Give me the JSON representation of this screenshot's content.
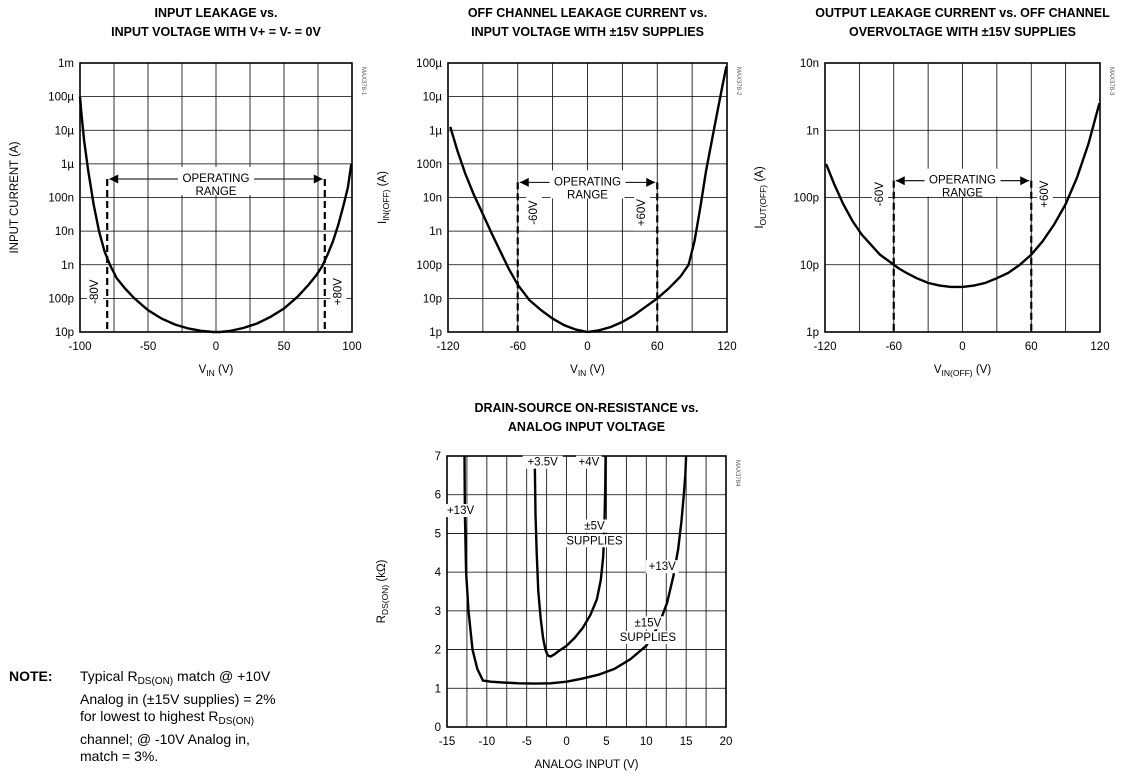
{
  "chart_data": [
    {
      "id": "g1",
      "type": "line",
      "title": [
        "INPUT LEAKAGE vs.",
        "INPUT VOLTAGE WITH V+ = V- = 0V"
      ],
      "xlabel": {
        "main": "V",
        "sub": "IN",
        "rest": " (V)"
      },
      "ylabel": {
        "main": "INPUT CURRENT (A)",
        "sub": "",
        "rest": ""
      },
      "code": "MAX378-1",
      "xlim": [
        -100,
        100
      ],
      "ylim": [
        -11,
        -3
      ],
      "y_scale": "log",
      "x_ticks": [
        {
          "v": -100,
          "t": "-100"
        },
        {
          "v": -50,
          "t": "-50"
        },
        {
          "v": 0,
          "t": "0"
        },
        {
          "v": 50,
          "t": "50"
        },
        {
          "v": 100,
          "t": "100"
        }
      ],
      "y_ticks": [
        {
          "v": -11,
          "t": "10p"
        },
        {
          "v": -10,
          "t": "100p"
        },
        {
          "v": -9,
          "t": "1n"
        },
        {
          "v": -8,
          "t": "10n"
        },
        {
          "v": -7,
          "t": "100n"
        },
        {
          "v": -6,
          "t": "1µ"
        },
        {
          "v": -5,
          "t": "10µ"
        },
        {
          "v": -4,
          "t": "100µ"
        },
        {
          "v": -3,
          "t": "1m"
        }
      ],
      "grid_x": [
        -75,
        -50,
        -25,
        0,
        25,
        50,
        75
      ],
      "series": [
        {
          "x": [
            -100,
            -99,
            -97,
            -94,
            -90,
            -86,
            -82,
            -78,
            -73,
            -67,
            -60,
            -50,
            -40,
            -30,
            -20,
            -10,
            -2,
            0,
            3,
            10,
            20,
            30,
            40,
            50,
            60,
            68,
            74,
            78,
            82,
            86,
            90,
            94,
            97,
            99.5
          ],
          "y": [
            -4.0,
            -4.5,
            -5.3,
            -6.2,
            -7.2,
            -8.0,
            -8.6,
            -9.0,
            -9.4,
            -9.7,
            -10.0,
            -10.35,
            -10.6,
            -10.78,
            -10.9,
            -10.97,
            -11.0,
            -11.0,
            -11.0,
            -10.97,
            -10.88,
            -10.75,
            -10.55,
            -10.3,
            -9.95,
            -9.6,
            -9.3,
            -9.05,
            -8.7,
            -8.3,
            -7.8,
            -7.2,
            -6.7,
            -6.0
          ]
        }
      ],
      "dashed_x": [
        -80,
        80
      ],
      "dashed_from_y": -6.45,
      "range_label": [
        "OPERATING",
        "RANGE"
      ],
      "range_label_x": 0,
      "range_arrow_y": -6.45,
      "v_labels": [
        {
          "t": "-80V",
          "x": -89,
          "y": -9.8
        },
        {
          "t": "+80V",
          "x": 90,
          "y": -9.8
        }
      ]
    },
    {
      "id": "g2",
      "type": "line",
      "title": [
        "OFF CHANNEL LEAKAGE CURRENT vs.",
        "INPUT VOLTAGE WITH ±15V SUPPLIES"
      ],
      "xlabel": {
        "main": "V",
        "sub": "IN",
        "rest": " (V)"
      },
      "ylabel": {
        "main": "I",
        "sub": "IN(OFF)",
        "rest": " (A)"
      },
      "code": "MAX378-2",
      "xlim": [
        -120,
        120
      ],
      "ylim": [
        -12,
        -4
      ],
      "y_scale": "log",
      "x_ticks": [
        {
          "v": -120,
          "t": "-120"
        },
        {
          "v": -60,
          "t": "-60"
        },
        {
          "v": 0,
          "t": "0"
        },
        {
          "v": 60,
          "t": "60"
        },
        {
          "v": 120,
          "t": "120"
        }
      ],
      "y_ticks": [
        {
          "v": -12,
          "t": "1p"
        },
        {
          "v": -11,
          "t": "10p"
        },
        {
          "v": -10,
          "t": "100p"
        },
        {
          "v": -9,
          "t": "1n"
        },
        {
          "v": -8,
          "t": "10n"
        },
        {
          "v": -7,
          "t": "100n"
        },
        {
          "v": -6,
          "t": "1µ"
        },
        {
          "v": -5,
          "t": "10µ"
        },
        {
          "v": -4,
          "t": "100µ"
        }
      ],
      "grid_x": [
        -90,
        -60,
        -30,
        0,
        30,
        60,
        90
      ],
      "series": [
        {
          "x": [
            -118,
            -112,
            -105,
            -98,
            -90,
            -82,
            -75,
            -68,
            -60,
            -50,
            -40,
            -30,
            -20,
            -10,
            0,
            10,
            20,
            30,
            40,
            50,
            60,
            70,
            80,
            87,
            92,
            97,
            102,
            107,
            112,
            116,
            119.5
          ],
          "y": [
            -5.9,
            -6.6,
            -7.3,
            -7.9,
            -8.5,
            -9.1,
            -9.6,
            -10.1,
            -10.6,
            -11.05,
            -11.35,
            -11.6,
            -11.8,
            -11.93,
            -12.0,
            -11.95,
            -11.85,
            -11.7,
            -11.5,
            -11.25,
            -11.0,
            -10.7,
            -10.35,
            -10.0,
            -9.3,
            -8.3,
            -7.2,
            -6.3,
            -5.4,
            -4.7,
            -4.1
          ]
        }
      ],
      "dashed_x": [
        -60,
        60
      ],
      "dashed_from_y": -7.55,
      "range_label": [
        "OPERATING",
        "RANGE"
      ],
      "range_label_x": 0,
      "range_arrow_y": -7.55,
      "v_labels": [
        {
          "t": "-60V",
          "x": -46,
          "y": -8.45
        },
        {
          "t": "+60V",
          "x": 47,
          "y": -8.45
        }
      ]
    },
    {
      "id": "g3",
      "type": "line",
      "title": [
        "OUTPUT LEAKAGE CURRENT vs. OFF CHANNEL",
        "OVERVOLTAGE WITH ±15V SUPPLIES"
      ],
      "xlabel": {
        "main": "V",
        "sub": "IN(OFF)",
        "rest": " (V)"
      },
      "ylabel": {
        "main": "I",
        "sub": "OUT(OFF)",
        "rest": " (A)"
      },
      "code": "MAX378-3",
      "xlim": [
        -120,
        120
      ],
      "ylim": [
        -12,
        -8
      ],
      "y_scale": "log",
      "x_ticks": [
        {
          "v": -120,
          "t": "-120"
        },
        {
          "v": -60,
          "t": "-60"
        },
        {
          "v": 0,
          "t": "0"
        },
        {
          "v": 60,
          "t": "60"
        },
        {
          "v": 120,
          "t": "120"
        }
      ],
      "y_ticks": [
        {
          "v": -12,
          "t": "1p"
        },
        {
          "v": -11,
          "t": "10p"
        },
        {
          "v": -10,
          "t": "100p"
        },
        {
          "v": -9,
          "t": "1n"
        },
        {
          "v": -8,
          "t": "10n"
        }
      ],
      "grid_x": [
        -90,
        -60,
        -30,
        0,
        30,
        60,
        90
      ],
      "series": [
        {
          "x": [
            -119,
            -112,
            -104,
            -96,
            -88,
            -80,
            -72,
            -64,
            -56,
            -48,
            -40,
            -30,
            -20,
            -10,
            0,
            10,
            20,
            30,
            40,
            50,
            60,
            70,
            80,
            90,
            100,
            110,
            119.5
          ],
          "y": [
            -9.5,
            -9.8,
            -10.1,
            -10.35,
            -10.55,
            -10.7,
            -10.85,
            -10.95,
            -11.05,
            -11.13,
            -11.2,
            -11.27,
            -11.31,
            -11.33,
            -11.33,
            -11.31,
            -11.27,
            -11.2,
            -11.12,
            -11.0,
            -10.85,
            -10.65,
            -10.4,
            -10.1,
            -9.7,
            -9.2,
            -8.6
          ]
        }
      ],
      "dashed_x": [
        -60,
        60
      ],
      "dashed_from_y": -9.75,
      "range_label": [
        "OPERATING",
        "RANGE"
      ],
      "range_label_x": 0,
      "range_arrow_y": -9.75,
      "v_labels": [
        {
          "t": "-60V",
          "x": -72,
          "y": -9.95
        },
        {
          "t": "+60V",
          "x": 72,
          "y": -9.95
        }
      ]
    },
    {
      "id": "g4",
      "type": "line",
      "title": [
        "DRAIN-SOURCE ON-RESISTANCE vs.",
        "ANALOG INPUT VOLTAGE"
      ],
      "xlabel": {
        "main": "ANALOG INPUT (V)",
        "sub": "",
        "rest": ""
      },
      "ylabel": {
        "main": "R",
        "sub": "DS(ON)",
        "rest": " (kΩ)"
      },
      "code": "MAX3784",
      "xlim": [
        -15,
        20
      ],
      "ylim": [
        0,
        7
      ],
      "y_scale": "linear",
      "x_ticks": [
        {
          "v": -15,
          "t": "-15"
        },
        {
          "v": -10,
          "t": "-10"
        },
        {
          "v": -5,
          "t": "-5"
        },
        {
          "v": 0,
          "t": "0"
        },
        {
          "v": 5,
          "t": "5"
        },
        {
          "v": 10,
          "t": "10"
        },
        {
          "v": 15,
          "t": "15"
        },
        {
          "v": 20,
          "t": "20"
        }
      ],
      "y_ticks": [
        {
          "v": 0,
          "t": "0"
        },
        {
          "v": 1,
          "t": "1"
        },
        {
          "v": 2,
          "t": "2"
        },
        {
          "v": 3,
          "t": "3"
        },
        {
          "v": 4,
          "t": "4"
        },
        {
          "v": 5,
          "t": "5"
        },
        {
          "v": 6,
          "t": "6"
        },
        {
          "v": 7,
          "t": "7"
        }
      ],
      "grid_x": [
        -12.5,
        -10,
        -7.5,
        -5,
        -2.5,
        0,
        2.5,
        5,
        7.5,
        10,
        12.5,
        15,
        17.5
      ],
      "series": [
        {
          "name": "±15V SUPPLIES",
          "x": [
            -12.8,
            -12.75,
            -12.6,
            -12.3,
            -11.8,
            -11.2,
            -10.5,
            -9.5,
            -8,
            -6,
            -4,
            -2,
            0,
            2,
            4,
            6,
            8,
            10,
            11.5,
            12.6,
            13.4,
            14.0,
            14.4,
            14.7,
            14.9,
            15.0
          ],
          "y": [
            7.0,
            5.5,
            4.0,
            3.0,
            2.0,
            1.5,
            1.2,
            1.17,
            1.15,
            1.13,
            1.12,
            1.13,
            1.17,
            1.25,
            1.35,
            1.5,
            1.75,
            2.1,
            2.6,
            3.2,
            3.9,
            4.6,
            5.3,
            6.0,
            6.5,
            7.0
          ]
        },
        {
          "name": "±5V SUPPLIES",
          "x": [
            -4.0,
            -3.9,
            -3.75,
            -3.55,
            -3.25,
            -2.95,
            -2.65,
            -2.35,
            -2.0,
            -1.5,
            -1.0,
            0,
            1,
            2,
            3,
            3.8,
            4.3,
            4.6,
            4.75,
            4.85,
            4.9
          ],
          "y": [
            7.0,
            5.5,
            4.5,
            3.5,
            2.8,
            2.3,
            2.0,
            1.85,
            1.82,
            1.88,
            1.96,
            2.1,
            2.3,
            2.55,
            2.9,
            3.3,
            3.8,
            4.4,
            5.2,
            6.1,
            7.0
          ]
        }
      ],
      "labels": [
        {
          "t": "+13V",
          "x": -13.3,
          "y": 5.5
        },
        {
          "t": "+3.5V",
          "x": -3.0,
          "y": 6.75
        },
        {
          "t": "+4V",
          "x": 2.8,
          "y": 6.75
        },
        {
          "t": "±5V",
          "x": 3.5,
          "y": 5.1
        },
        {
          "t": "SUPPLIES",
          "x": 3.5,
          "y": 4.72
        },
        {
          "t": "+13V",
          "x": 12.0,
          "y": 4.05
        },
        {
          "t": "±15V",
          "x": 10.2,
          "y": 2.6
        },
        {
          "t": "SUPPLIES",
          "x": 10.2,
          "y": 2.22
        }
      ]
    }
  ],
  "note": {
    "label": "NOTE:",
    "line1": "Typical R",
    "line1_sub": "DS(ON)",
    "line1_rest": " match @ +10V",
    "line2": "Analog in (±15V supplies) = 2%",
    "line3": "for lowest to highest R",
    "line3_sub": "DS(ON)",
    "line4": "channel;  @ -10V Analog in,",
    "line5": "match = 3%."
  }
}
